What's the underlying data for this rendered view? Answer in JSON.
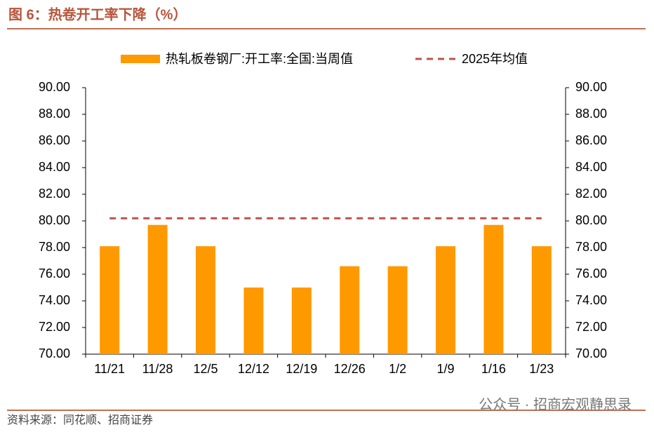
{
  "chart_data": {
    "type": "bar",
    "title": "图 6：热卷开工率下降（%）",
    "source": "资料来源：同花顺、招商证券",
    "watermark": "公众号 · 招商宏观静思录",
    "categories": [
      "11/21",
      "11/28",
      "12/5",
      "12/12",
      "12/19",
      "12/26",
      "1/2",
      "1/9",
      "1/16",
      "1/23"
    ],
    "series": [
      {
        "name": "热轧板卷钢厂:开工率:全国:当周值",
        "type": "bar",
        "color": "#ff9900",
        "values": [
          78.1,
          79.7,
          78.1,
          75.0,
          75.0,
          76.6,
          76.6,
          78.1,
          79.7,
          78.1
        ]
      },
      {
        "name": "2025年均值",
        "type": "line",
        "dashed": true,
        "color": "#c0504d",
        "values": [
          80.2,
          80.2,
          80.2,
          80.2,
          80.2,
          80.2,
          80.2,
          80.2,
          80.2,
          80.2
        ]
      }
    ],
    "ylim": [
      70,
      90
    ],
    "yticks": [
      {
        "value": 70,
        "label": "70.00"
      },
      {
        "value": 72,
        "label": "72.00"
      },
      {
        "value": 74,
        "label": "74.00"
      },
      {
        "value": 76,
        "label": "76.00"
      },
      {
        "value": 78,
        "label": "78.00"
      },
      {
        "value": 80,
        "label": "80.00"
      },
      {
        "value": 82,
        "label": "82.00"
      },
      {
        "value": 84,
        "label": "84.00"
      },
      {
        "value": 86,
        "label": "86.00"
      },
      {
        "value": 88,
        "label": "88.00"
      },
      {
        "value": 90,
        "label": "90.00"
      }
    ],
    "y2lim": [
      70,
      90
    ],
    "y2ticks": [
      {
        "value": 70,
        "label": "70.00"
      },
      {
        "value": 72,
        "label": "72.00"
      },
      {
        "value": 74,
        "label": "74.00"
      },
      {
        "value": 76,
        "label": "76.00"
      },
      {
        "value": 78,
        "label": "78.00"
      },
      {
        "value": 80,
        "label": "80.00"
      },
      {
        "value": 82,
        "label": "82.00"
      },
      {
        "value": 84,
        "label": "84.00"
      },
      {
        "value": 86,
        "label": "86.00"
      },
      {
        "value": 88,
        "label": "88.00"
      },
      {
        "value": 90,
        "label": "90.00"
      }
    ],
    "grid": false,
    "legend": "top"
  }
}
